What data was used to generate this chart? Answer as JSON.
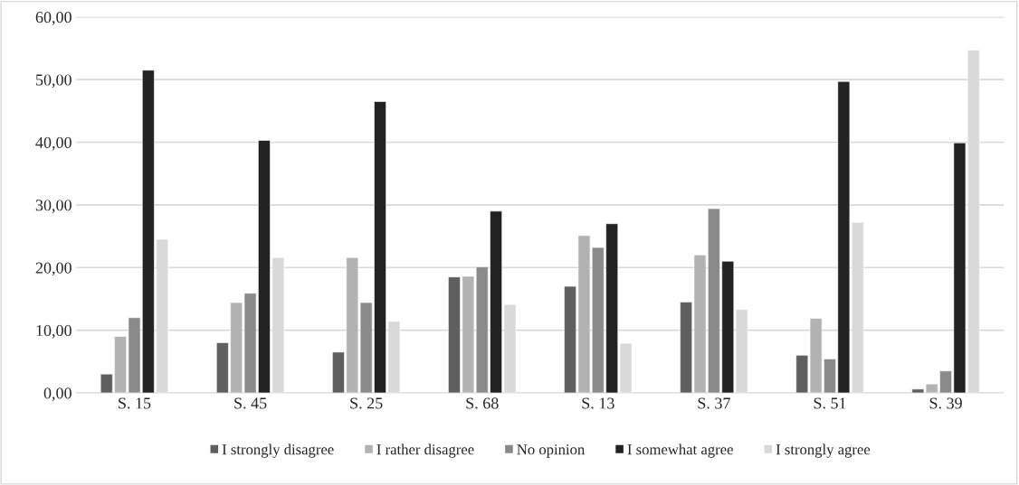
{
  "chart_data": {
    "type": "bar",
    "categories": [
      "S. 15",
      "S. 45",
      "S. 25",
      "S. 68",
      "S. 13",
      "S. 37",
      "S. 51",
      "S. 39"
    ],
    "series": [
      {
        "name": "I strongly disagree",
        "color": "#5f5f5f",
        "values": [
          3.0,
          8.0,
          6.5,
          18.5,
          17.0,
          14.5,
          6.0,
          0.6
        ]
      },
      {
        "name": "I rather disagree",
        "color": "#b2b2b2",
        "values": [
          9.0,
          14.4,
          21.6,
          18.6,
          25.1,
          22.0,
          11.9,
          1.4
        ]
      },
      {
        "name": "No opinion",
        "color": "#8a8a8a",
        "values": [
          12.0,
          15.9,
          14.4,
          20.1,
          23.2,
          29.4,
          5.4,
          3.5
        ]
      },
      {
        "name": "I somewhat agree",
        "color": "#222222",
        "values": [
          51.5,
          40.3,
          46.5,
          29.0,
          27.0,
          21.0,
          49.7,
          39.9
        ]
      },
      {
        "name": "I strongly agree",
        "color": "#d9d9d9",
        "values": [
          24.5,
          21.6,
          11.4,
          14.1,
          7.9,
          13.3,
          27.2,
          54.7
        ]
      }
    ],
    "ylim": [
      0,
      60
    ],
    "yticks": [
      {
        "value": 0,
        "label": "0,00"
      },
      {
        "value": 10,
        "label": "10,00"
      },
      {
        "value": 20,
        "label": "20,00"
      },
      {
        "value": 30,
        "label": "30,00"
      },
      {
        "value": 40,
        "label": "40,00"
      },
      {
        "value": 50,
        "label": "50,00"
      },
      {
        "value": 60,
        "label": "60,00"
      }
    ],
    "grid": "y",
    "legend": "bottom"
  }
}
